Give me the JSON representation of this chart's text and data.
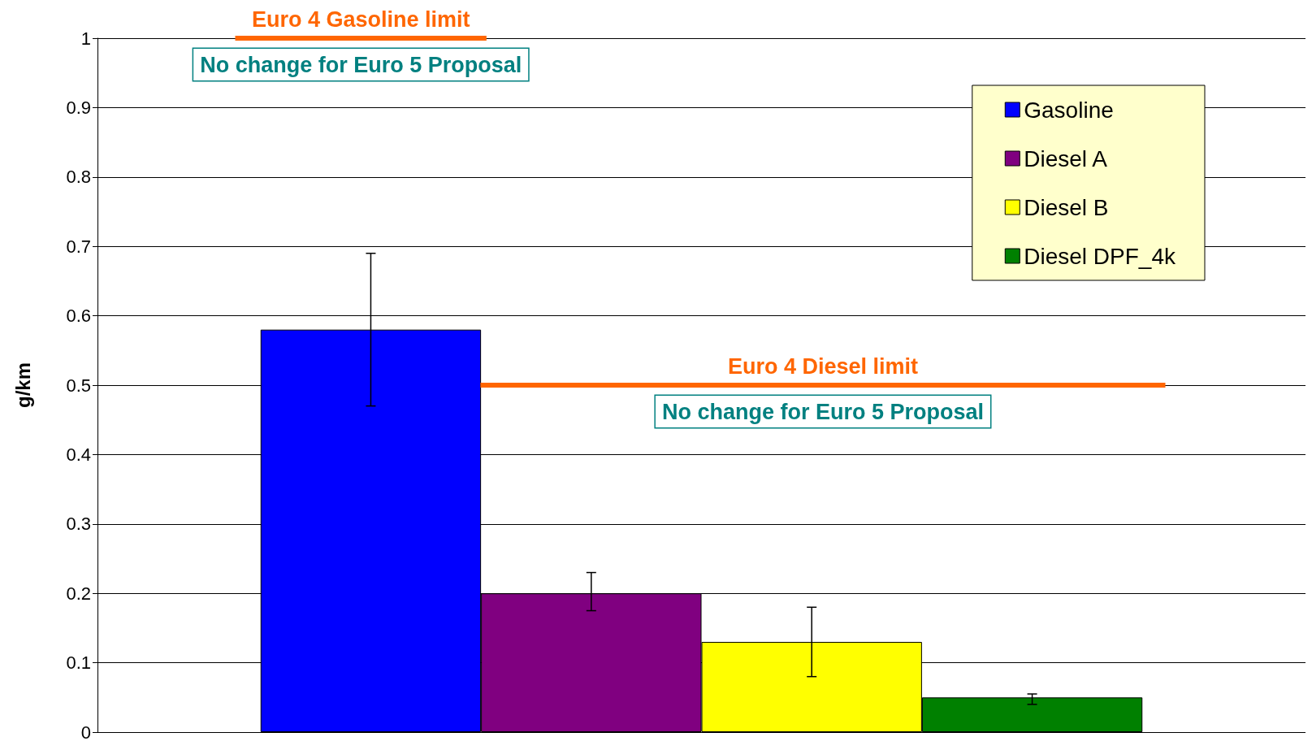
{
  "chart_data": {
    "type": "bar",
    "ylabel": "g/km",
    "categories": [
      null
    ],
    "series": [
      {
        "name": "Gasoline",
        "color": "#0000ff",
        "values": [
          0.58
        ],
        "errors": [
          [
            0.47,
            0.69
          ]
        ]
      },
      {
        "name": "Diesel A",
        "color": "#800080",
        "values": [
          0.2
        ],
        "errors": [
          [
            0.175,
            0.23
          ]
        ]
      },
      {
        "name": "Diesel B",
        "color": "#ffff00",
        "values": [
          0.13
        ],
        "errors": [
          [
            0.08,
            0.18
          ]
        ]
      },
      {
        "name": "Diesel DPF_4k",
        "color": "#008000",
        "values": [
          0.05
        ],
        "errors": [
          [
            0.04,
            0.055
          ]
        ]
      }
    ],
    "ylim": [
      0,
      1
    ],
    "yticks": [
      0,
      0.1,
      0.2,
      0.3,
      0.4,
      0.5,
      0.6,
      0.7,
      0.8,
      0.9,
      1
    ],
    "ref_lines": [
      {
        "axis": "y",
        "value": 1,
        "label": "Euro 4 Gasoline limit",
        "color": "#ff6600"
      },
      {
        "axis": "y",
        "value": 0.5,
        "label": "Euro 4 Diesel limit",
        "color": "#ff6600"
      }
    ],
    "annotations": [
      "No change for Euro 5 Proposal",
      "No change for Euro 5 Proposal"
    ],
    "grid": "y",
    "legend": "top right"
  }
}
